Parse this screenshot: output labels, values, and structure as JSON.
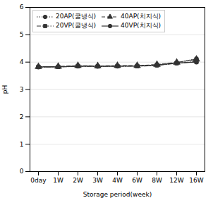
{
  "chart_data": {
    "type": "line",
    "categories": [
      "0day",
      "1W",
      "2W",
      "3W",
      "4W",
      "6W",
      "8W",
      "12W",
      "16W"
    ],
    "series": [
      {
        "name": "20AP(굴냉식)",
        "color": "#333333",
        "marker": "circle",
        "line_style": "dotted",
        "values": [
          3.84,
          3.83,
          3.86,
          3.85,
          3.86,
          3.86,
          3.9,
          3.98,
          4.12
        ]
      },
      {
        "name": "40AP(치지식)",
        "color": "#333333",
        "marker": "triangle",
        "line_style": "dashed",
        "values": [
          3.83,
          3.84,
          3.87,
          3.86,
          3.87,
          3.87,
          3.91,
          3.99,
          4.1
        ]
      },
      {
        "name": "20VP(굴냉식)",
        "color": "#333333",
        "marker": "square",
        "line_style": "dashdot",
        "values": [
          3.82,
          3.82,
          3.85,
          3.84,
          3.85,
          3.85,
          3.88,
          3.96,
          4.02
        ]
      },
      {
        "name": "40VP(치지식)",
        "color": "#333333",
        "marker": "circle",
        "line_style": "solid",
        "values": [
          3.82,
          3.83,
          3.85,
          3.85,
          3.85,
          3.86,
          3.89,
          3.97,
          4.0
        ]
      }
    ],
    "xlabel": "Storage period(week)",
    "ylabel": "pH",
    "ylim": [
      0,
      6
    ],
    "yticks": [
      0,
      1,
      2,
      3,
      4,
      5,
      6
    ],
    "grid": true,
    "legend": "upper left"
  }
}
